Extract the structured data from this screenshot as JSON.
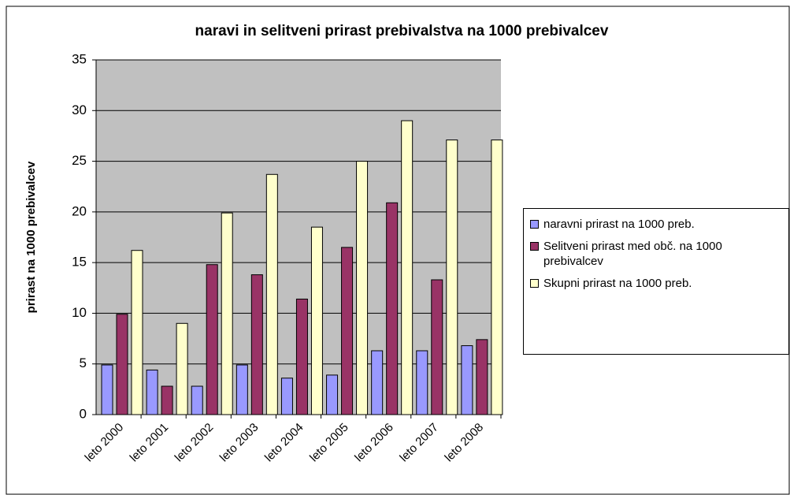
{
  "chart_data": {
    "type": "bar",
    "title": "naravi in selitveni prirast prebivalstva na 1000 prebivalcev",
    "y_label": "prirast na 1000 prebivalcev",
    "categories": [
      "leto 2000",
      "leto 2001",
      "leto 2002",
      "leto 2003",
      "leto 2004",
      "leto 2005",
      "leto 2006",
      "leto 2007",
      "leto 2008"
    ],
    "series": [
      {
        "name": "naravni prirast na 1000 preb.",
        "color": "#9999ff",
        "values": [
          4.9,
          4.4,
          2.8,
          4.9,
          3.6,
          3.9,
          6.3,
          6.3,
          6.8
        ]
      },
      {
        "name": "Selitveni prirast med obč. na 1000 prebivalcev",
        "color": "#993366",
        "values": [
          9.9,
          2.8,
          14.8,
          13.8,
          11.4,
          16.5,
          20.9,
          13.3,
          7.4
        ]
      },
      {
        "name": "Skupni  prirast na 1000 preb.",
        "color": "#ffffcc",
        "values": [
          16.2,
          9.0,
          19.9,
          23.7,
          18.5,
          25.0,
          29.0,
          27.1,
          27.1
        ]
      }
    ],
    "ylim": [
      0,
      35
    ],
    "yticks": [
      0,
      5,
      10,
      15,
      20,
      25,
      30,
      35
    ],
    "grid": true,
    "legend": "right"
  }
}
